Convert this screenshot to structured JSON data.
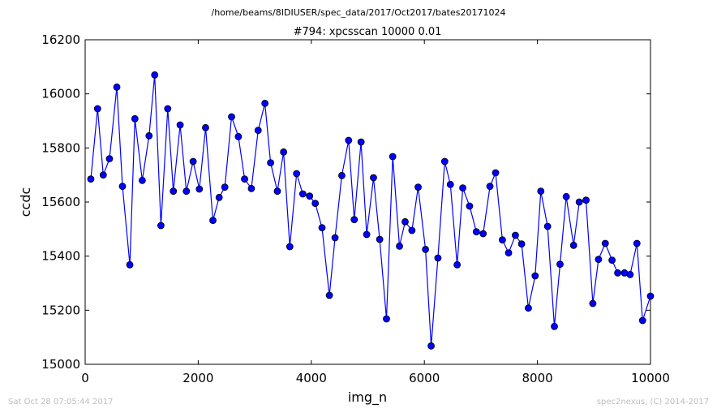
{
  "footer": {
    "timestamp": "Sat Oct 28 07:05:44 2017",
    "credit": "spec2nexus, (C) 2014-2017"
  },
  "chart_data": {
    "type": "line",
    "suptitle": "/home/beams/8IDIUSER/spec_data/2017/Oct2017/bates20171024",
    "title": "#794: xpcsscan 10000 0.01",
    "xlabel": "img_n",
    "ylabel": "ccdc",
    "xlim": [
      0,
      10000
    ],
    "ylim": [
      15000,
      16200
    ],
    "xticks": [
      0,
      2000,
      4000,
      6000,
      8000,
      10000
    ],
    "yticks": [
      15000,
      15200,
      15400,
      15600,
      15800,
      16000,
      16200
    ],
    "line_color": "#0000ff",
    "marker_color": "#0000ff",
    "grid": false,
    "series": [
      {
        "x": [
          100,
          220,
          320,
          430,
          560,
          660,
          790,
          880,
          1010,
          1130,
          1230,
          1340,
          1460,
          1560,
          1680,
          1790,
          1910,
          2020,
          2130,
          2260,
          2370,
          2470,
          2590,
          2710,
          2820,
          2940,
          3060,
          3180,
          3280,
          3400,
          3510,
          3620,
          3740,
          3850,
          3970,
          4070,
          4190,
          4320,
          4420,
          4540,
          4660,
          4760,
          4880,
          4980,
          5100,
          5210,
          5330,
          5440,
          5560,
          5660,
          5780,
          5890,
          6020,
          6120,
          6240,
          6360,
          6460,
          6580,
          6680,
          6800,
          6920,
          7040,
          7160,
          7260,
          7380,
          7490,
          7610,
          7720,
          7840,
          7960,
          8060,
          8180,
          8300,
          8400,
          8510,
          8640,
          8740,
          8860,
          8980,
          9080,
          9200,
          9320,
          9420,
          9540,
          9640,
          9760,
          9860,
          10000
        ],
        "y": [
          15685,
          15945,
          15700,
          15760,
          16025,
          15658,
          15368,
          15908,
          15680,
          15845,
          16070,
          15513,
          15945,
          15640,
          15885,
          15640,
          15750,
          15648,
          15875,
          15532,
          15617,
          15655,
          15915,
          15842,
          15685,
          15650,
          15865,
          15965,
          15745,
          15640,
          15785,
          15435,
          15705,
          15630,
          15622,
          15595,
          15505,
          15255,
          15468,
          15698,
          15828,
          15535,
          15822,
          15480,
          15690,
          15462,
          15168,
          15768,
          15437,
          15527,
          15495,
          15655,
          15425,
          15068,
          15393,
          15750,
          15665,
          15368,
          15652,
          15585,
          15490,
          15483,
          15658,
          15708,
          15460,
          15412,
          15477,
          15445,
          15208,
          15327,
          15640,
          15510,
          15140,
          15370,
          15620,
          15440,
          15600,
          15607,
          15225,
          15388,
          15447,
          15385,
          15338,
          15338,
          15332,
          15447,
          15162,
          15252
        ]
      }
    ]
  }
}
